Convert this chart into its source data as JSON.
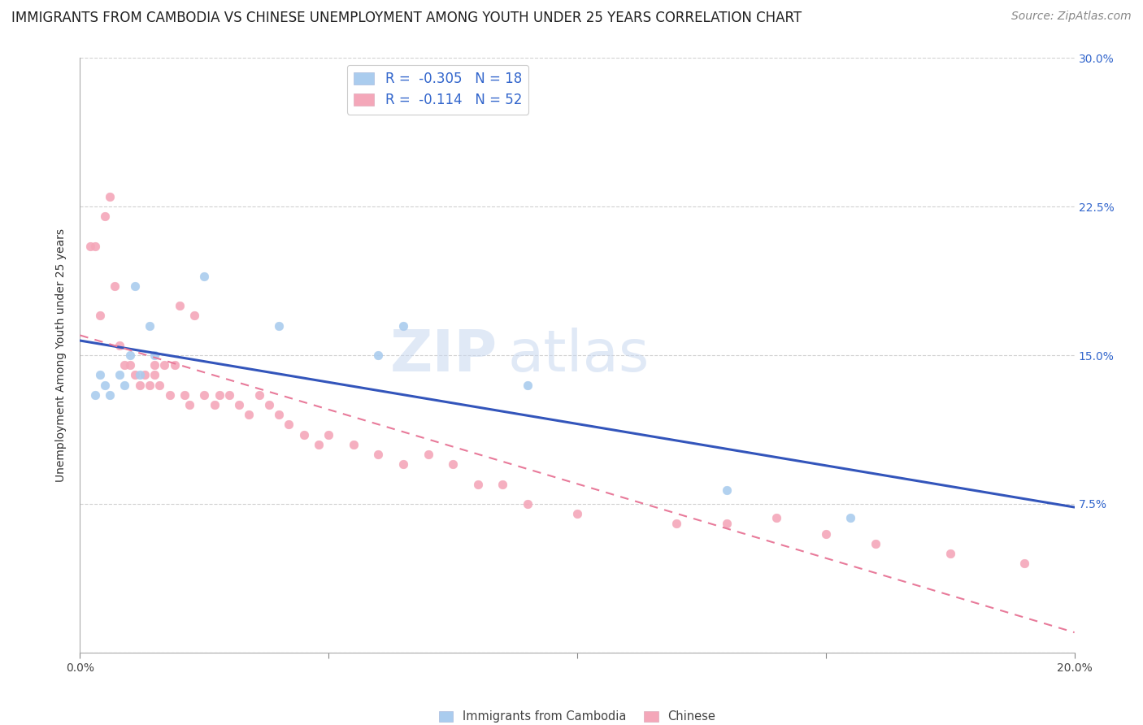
{
  "title": "IMMIGRANTS FROM CAMBODIA VS CHINESE UNEMPLOYMENT AMONG YOUTH UNDER 25 YEARS CORRELATION CHART",
  "source": "Source: ZipAtlas.com",
  "ylabel": "Unemployment Among Youth under 25 years",
  "x_min": 0.0,
  "x_max": 0.2,
  "y_min": 0.0,
  "y_max": 0.3,
  "x_ticks": [
    0.0,
    0.05,
    0.1,
    0.15,
    0.2
  ],
  "y_ticks": [
    0.0,
    0.075,
    0.15,
    0.225,
    0.3
  ],
  "y_tick_labels_right": [
    "",
    "7.5%",
    "15.0%",
    "22.5%",
    "30.0%"
  ],
  "legend_r_color": "#3366cc",
  "watermark_zip": "ZIP",
  "watermark_atlas": "atlas",
  "series1_color": "#aaccee",
  "series1_edge": "#aaccee",
  "series2_color": "#f4a7b9",
  "series2_edge": "#f4a7b9",
  "line1_color": "#3355bb",
  "line2_color": "#e87a9a",
  "grid_color": "#cccccc",
  "background": "#ffffff",
  "cambodia_x": [
    0.003,
    0.004,
    0.005,
    0.006,
    0.008,
    0.009,
    0.01,
    0.011,
    0.012,
    0.014,
    0.015,
    0.025,
    0.04,
    0.06,
    0.065,
    0.09,
    0.13,
    0.155
  ],
  "cambodia_y": [
    0.13,
    0.14,
    0.135,
    0.13,
    0.14,
    0.135,
    0.15,
    0.185,
    0.14,
    0.165,
    0.15,
    0.19,
    0.165,
    0.15,
    0.165,
    0.135,
    0.082,
    0.068
  ],
  "chinese_x": [
    0.002,
    0.003,
    0.004,
    0.005,
    0.006,
    0.007,
    0.008,
    0.009,
    0.01,
    0.011,
    0.012,
    0.013,
    0.014,
    0.015,
    0.015,
    0.016,
    0.017,
    0.018,
    0.019,
    0.02,
    0.021,
    0.022,
    0.023,
    0.025,
    0.027,
    0.028,
    0.03,
    0.032,
    0.034,
    0.036,
    0.038,
    0.04,
    0.042,
    0.045,
    0.048,
    0.05,
    0.055,
    0.06,
    0.065,
    0.07,
    0.075,
    0.08,
    0.085,
    0.09,
    0.1,
    0.12,
    0.13,
    0.14,
    0.15,
    0.16,
    0.175,
    0.19
  ],
  "chinese_y": [
    0.205,
    0.205,
    0.17,
    0.22,
    0.23,
    0.185,
    0.155,
    0.145,
    0.145,
    0.14,
    0.135,
    0.14,
    0.135,
    0.14,
    0.145,
    0.135,
    0.145,
    0.13,
    0.145,
    0.175,
    0.13,
    0.125,
    0.17,
    0.13,
    0.125,
    0.13,
    0.13,
    0.125,
    0.12,
    0.13,
    0.125,
    0.12,
    0.115,
    0.11,
    0.105,
    0.11,
    0.105,
    0.1,
    0.095,
    0.1,
    0.095,
    0.085,
    0.085,
    0.075,
    0.07,
    0.065,
    0.065,
    0.068,
    0.06,
    0.055,
    0.05,
    0.045
  ],
  "title_fontsize": 12,
  "source_fontsize": 10,
  "axis_label_fontsize": 10,
  "tick_fontsize": 10,
  "legend_fontsize": 12,
  "marker_size": 60,
  "watermark_fontsize_zip": 52,
  "watermark_fontsize_atlas": 52,
  "watermark_color_zip": "#c8d8f0",
  "watermark_color_atlas": "#c8d8f0",
  "bottom_legend_label1": "Immigrants from Cambodia",
  "bottom_legend_label2": "Chinese"
}
